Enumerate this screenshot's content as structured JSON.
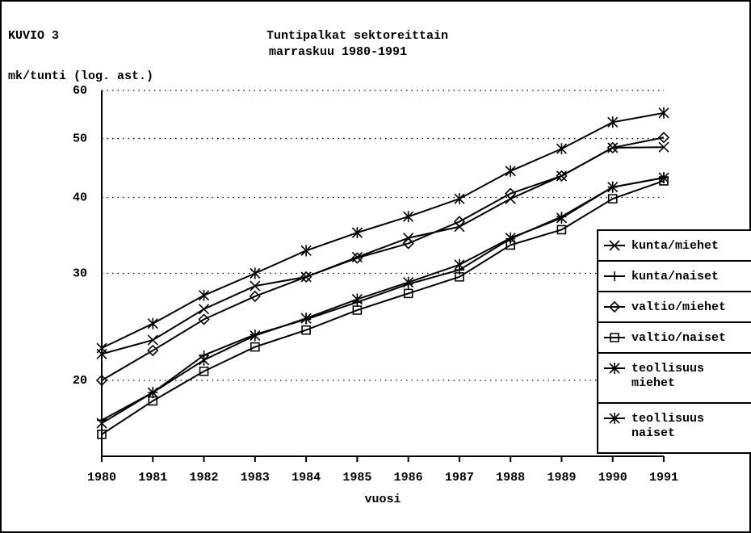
{
  "chart_data": {
    "type": "line",
    "label": "KUVIO 3",
    "title": "Tuntipalkat sektoreittain",
    "subtitle": "marraskuu 1980-1991",
    "y_label": "mk/tunti (log. ast.)",
    "x_label": "vuosi",
    "log_y": true,
    "grid": true,
    "legend": "right",
    "x": [
      1980,
      1981,
      1982,
      1983,
      1984,
      1985,
      1986,
      1987,
      1988,
      1989,
      1990,
      1991
    ],
    "xlim": [
      1980,
      1991
    ],
    "xticks": [
      1980,
      1981,
      1982,
      1983,
      1984,
      1985,
      1986,
      1987,
      1988,
      1989,
      1990,
      1991
    ],
    "ylim": [
      15,
      60
    ],
    "yticks": [
      20,
      30,
      40,
      50,
      60
    ],
    "series": [
      {
        "name": "kunta/miehet",
        "color": "#000000",
        "marker": "x",
        "values": [
          22.1,
          23.3,
          26.2,
          28.6,
          29.6,
          31.9,
          34.3,
          35.8,
          39.8,
          43.4,
          48.3,
          48.4
        ]
      },
      {
        "name": "kunta/naiset",
        "color": "#000000",
        "marker": "plus",
        "values": [
          17.2,
          19.1,
          22.0,
          23.8,
          25.2,
          26.9,
          28.8,
          30.4,
          34.2,
          37.2,
          41.6,
          43.1
        ]
      },
      {
        "name": "valtio/miehet",
        "color": "#000000",
        "marker": "diamond",
        "values": [
          20.0,
          22.4,
          25.2,
          27.5,
          29.6,
          31.8,
          33.6,
          36.5,
          40.6,
          43.4,
          48.3,
          50.2
        ]
      },
      {
        "name": "valtio/naiset",
        "color": "#000000",
        "marker": "square",
        "values": [
          16.3,
          18.5,
          20.7,
          22.7,
          24.2,
          26.1,
          27.8,
          29.6,
          33.4,
          35.4,
          39.8,
          42.6
        ]
      },
      {
        "name": "teollisuus miehet",
        "color": "#000000",
        "marker": "star",
        "values": [
          22.6,
          24.8,
          27.6,
          30.0,
          32.7,
          35.0,
          37.2,
          39.8,
          44.2,
          48.1,
          53.2,
          55.1
        ]
      },
      {
        "name": "teollisuus naiset",
        "color": "#000000",
        "marker": "star",
        "values": [
          17.0,
          19.1,
          21.6,
          23.7,
          25.3,
          27.2,
          29.0,
          31.0,
          34.3,
          37.0,
          41.6,
          43.1
        ]
      }
    ]
  }
}
